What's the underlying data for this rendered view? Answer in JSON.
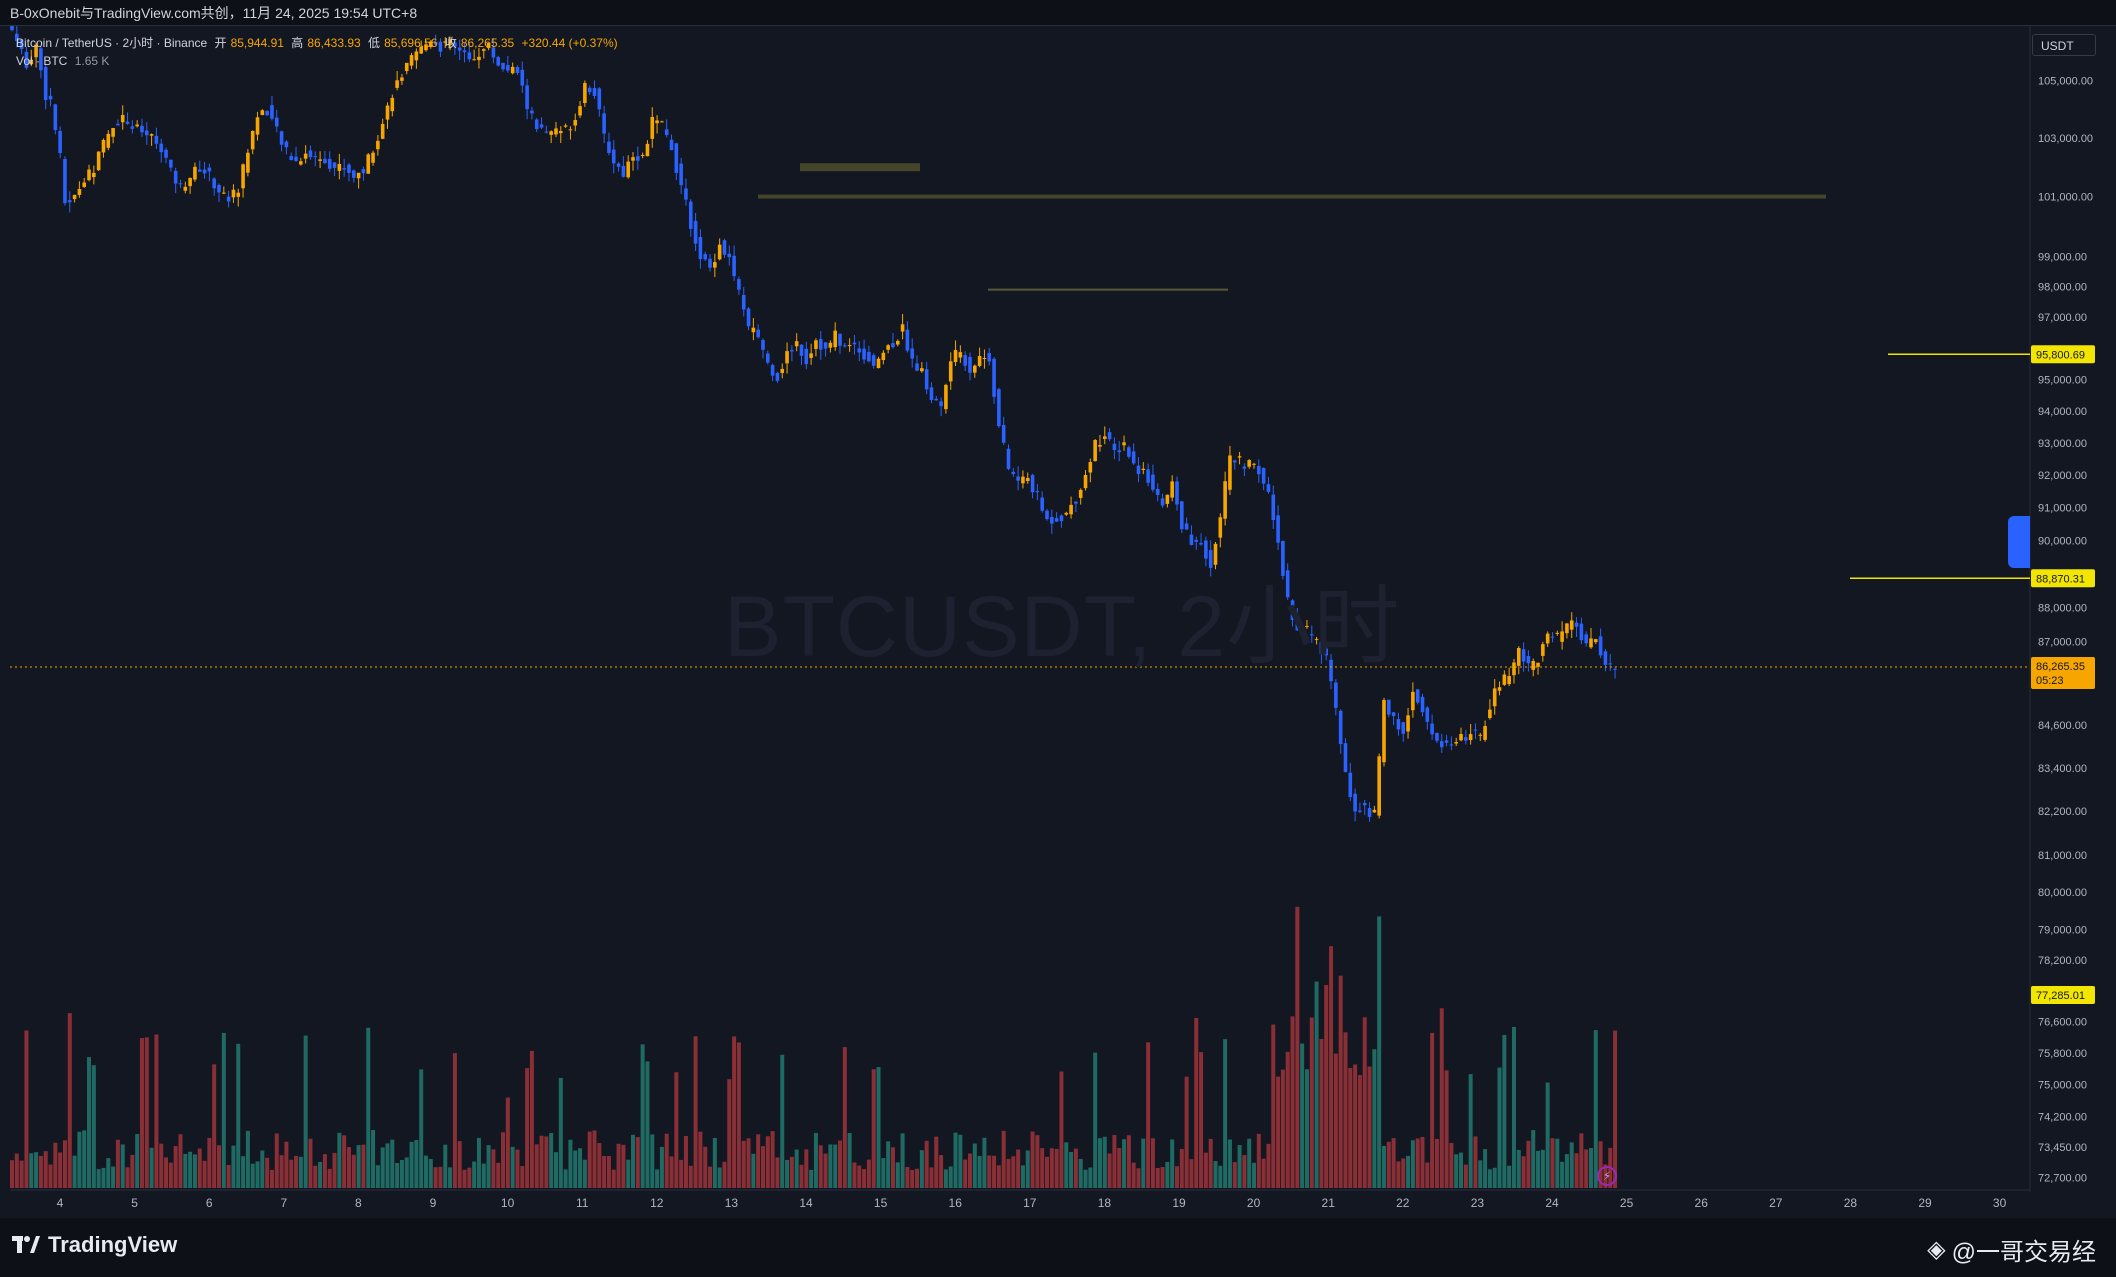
{
  "header": {
    "title": "B-0xOnebit与TradingView.com共创，11月 24, 2025 19:54 UTC+8"
  },
  "legend": {
    "symbol": "Bitcoin / TetherUS · 2小时 · Binance",
    "open_label": "开",
    "open": "85,944.91",
    "high_label": "高",
    "high": "86,433.93",
    "low_label": "低",
    "low": "85,696.56",
    "close_label": "收",
    "close": "86,265.35",
    "change": "+320.44 (+0.37%)",
    "vol_label": "Vol · BTC",
    "vol_value": "1.65 K"
  },
  "watermark": "BTCUSDT, 2小时",
  "currency": "USDT",
  "footer": {
    "brand": "TradingView",
    "author": "@一哥交易经"
  },
  "colors": {
    "up": "#f7a600",
    "down": "#2962ff",
    "vol_up": "#1f6b64",
    "vol_down": "#8a2f36",
    "marker": "#f2e600",
    "background": "#131722"
  },
  "chart_data": {
    "type": "candlestick",
    "symbol": "BTCUSDT",
    "interval": "2h",
    "y_scale": "log",
    "x_labels": [
      "4",
      "5",
      "6",
      "7",
      "8",
      "9",
      "10",
      "11",
      "12",
      "13",
      "14",
      "15",
      "16",
      "17",
      "18",
      "19",
      "20",
      "21",
      "22",
      "23",
      "24",
      "25",
      "26",
      "27",
      "28",
      "29",
      "30"
    ],
    "y_ticks": [
      105000,
      103000,
      101000,
      99000,
      98000,
      97000,
      95000,
      94000,
      93000,
      92000,
      91000,
      90000,
      88000,
      87000,
      84600,
      83400,
      82200,
      81000,
      80000,
      79000,
      78200,
      76600,
      75800,
      75000,
      74200,
      73450,
      72700
    ],
    "price_labels": [
      {
        "value": 95800.69,
        "text": "95,800.69"
      },
      {
        "value": 88870.31,
        "text": "88,870.31"
      },
      {
        "value": 77285.01,
        "text": "77,285.01"
      }
    ],
    "last_price": {
      "value": 86265.35,
      "text": "86,265.35",
      "countdown": "05:23"
    },
    "anchors": [
      [
        0,
        106800
      ],
      [
        3,
        105600
      ],
      [
        5,
        106200
      ],
      [
        7,
        104500
      ],
      [
        8,
        104300
      ],
      [
        10,
        102300
      ],
      [
        11,
        100800
      ],
      [
        13,
        101000
      ],
      [
        14,
        101300
      ],
      [
        17,
        102000
      ],
      [
        19,
        102800
      ],
      [
        21,
        103500
      ],
      [
        23,
        103700
      ],
      [
        25,
        103400
      ],
      [
        27,
        103200
      ],
      [
        29,
        103000
      ],
      [
        31,
        102700
      ],
      [
        33,
        101800
      ],
      [
        35,
        101300
      ],
      [
        37,
        101700
      ],
      [
        39,
        102000
      ],
      [
        41,
        101700
      ],
      [
        43,
        101200
      ],
      [
        45,
        100900
      ],
      [
        47,
        101300
      ],
      [
        49,
        102600
      ],
      [
        51,
        103800
      ],
      [
        53,
        104000
      ],
      [
        55,
        103200
      ],
      [
        57,
        102500
      ],
      [
        59,
        102200
      ],
      [
        61,
        102500
      ],
      [
        63,
        102300
      ],
      [
        65,
        102300
      ],
      [
        67,
        102000
      ],
      [
        69,
        102000
      ],
      [
        71,
        101700
      ],
      [
        73,
        101900
      ],
      [
        75,
        102700
      ],
      [
        77,
        103500
      ],
      [
        79,
        104600
      ],
      [
        81,
        105200
      ],
      [
        83,
        105700
      ],
      [
        85,
        106100
      ],
      [
        87,
        106500
      ],
      [
        89,
        106200
      ],
      [
        91,
        106300
      ],
      [
        93,
        106000
      ],
      [
        95,
        105700
      ],
      [
        97,
        106000
      ],
      [
        99,
        106200
      ],
      [
        101,
        105600
      ],
      [
        103,
        105400
      ],
      [
        105,
        105300
      ],
      [
        107,
        104100
      ],
      [
        109,
        103400
      ],
      [
        111,
        103100
      ],
      [
        113,
        103200
      ],
      [
        115,
        103300
      ],
      [
        117,
        103700
      ],
      [
        119,
        104900
      ],
      [
        121,
        104600
      ],
      [
        123,
        103000
      ],
      [
        125,
        102200
      ],
      [
        127,
        101800
      ],
      [
        129,
        102500
      ],
      [
        131,
        102300
      ],
      [
        133,
        103600
      ],
      [
        135,
        103400
      ],
      [
        137,
        102700
      ],
      [
        139,
        101300
      ],
      [
        141,
        100100
      ],
      [
        143,
        99000
      ],
      [
        145,
        98600
      ],
      [
        147,
        99400
      ],
      [
        149,
        98900
      ],
      [
        151,
        97800
      ],
      [
        153,
        96600
      ],
      [
        155,
        96400
      ],
      [
        157,
        95500
      ],
      [
        159,
        95100
      ],
      [
        161,
        95800
      ],
      [
        163,
        96200
      ],
      [
        165,
        95600
      ],
      [
        167,
        96300
      ],
      [
        169,
        95900
      ],
      [
        171,
        96400
      ],
      [
        173,
        96000
      ],
      [
        175,
        96100
      ],
      [
        177,
        95800
      ],
      [
        179,
        95500
      ],
      [
        181,
        95900
      ],
      [
        183,
        96200
      ],
      [
        185,
        96600
      ],
      [
        187,
        95600
      ],
      [
        189,
        95200
      ],
      [
        191,
        94400
      ],
      [
        193,
        94100
      ],
      [
        195,
        95600
      ],
      [
        197,
        95900
      ],
      [
        199,
        95300
      ],
      [
        201,
        95700
      ],
      [
        203,
        95700
      ],
      [
        205,
        93500
      ],
      [
        207,
        92200
      ],
      [
        209,
        91800
      ],
      [
        211,
        91900
      ],
      [
        213,
        91300
      ],
      [
        215,
        90600
      ],
      [
        217,
        90700
      ],
      [
        219,
        90800
      ],
      [
        221,
        91300
      ],
      [
        223,
        92000
      ],
      [
        225,
        93000
      ],
      [
        227,
        93200
      ],
      [
        229,
        92700
      ],
      [
        231,
        93000
      ],
      [
        233,
        92300
      ],
      [
        235,
        92100
      ],
      [
        237,
        91700
      ],
      [
        239,
        91000
      ],
      [
        241,
        91700
      ],
      [
        243,
        90500
      ],
      [
        245,
        89900
      ],
      [
        247,
        89900
      ],
      [
        249,
        89300
      ],
      [
        251,
        90800
      ],
      [
        253,
        92500
      ],
      [
        255,
        92400
      ],
      [
        257,
        92300
      ],
      [
        259,
        92100
      ],
      [
        261,
        91400
      ],
      [
        263,
        89900
      ],
      [
        265,
        88200
      ],
      [
        267,
        87400
      ],
      [
        269,
        87300
      ],
      [
        271,
        87100
      ],
      [
        273,
        86500
      ],
      [
        275,
        85000
      ],
      [
        277,
        83200
      ],
      [
        279,
        82300
      ],
      [
        281,
        82300
      ],
      [
        283,
        82100
      ],
      [
        285,
        85200
      ],
      [
        287,
        84900
      ],
      [
        289,
        84300
      ],
      [
        291,
        85600
      ],
      [
        293,
        85100
      ],
      [
        295,
        84300
      ],
      [
        297,
        84100
      ],
      [
        299,
        84000
      ],
      [
        301,
        84200
      ],
      [
        303,
        84400
      ],
      [
        305,
        84200
      ],
      [
        307,
        85200
      ],
      [
        309,
        85800
      ],
      [
        311,
        86000
      ],
      [
        313,
        86800
      ],
      [
        315,
        86300
      ],
      [
        317,
        86500
      ],
      [
        319,
        87200
      ],
      [
        321,
        87100
      ],
      [
        323,
        87400
      ],
      [
        325,
        87500
      ],
      [
        327,
        86800
      ],
      [
        329,
        87100
      ],
      [
        331,
        86400
      ],
      [
        333,
        86265
      ]
    ]
  }
}
